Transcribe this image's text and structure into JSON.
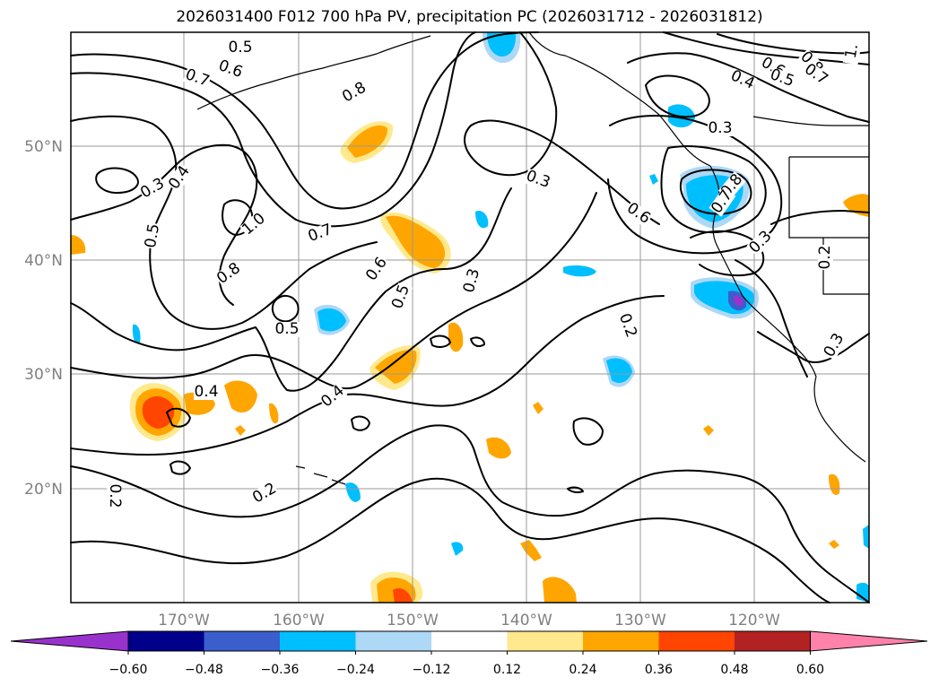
{
  "title": "2026031400 F012 700 hPa PV, precipitation PC (2026031712 - 2026031812)",
  "map": {
    "lon_labels": [
      "170°W",
      "160°W",
      "150°W",
      "140°W",
      "130°W",
      "120°W"
    ],
    "lat_labels": [
      "50°N",
      "40°N",
      "30°N",
      "20°N"
    ],
    "contour_labels": [
      "0.5",
      "0.6",
      "0.7",
      "0.8",
      "0.3",
      "0.4",
      "0.5",
      "1.0",
      "0.7",
      "0.8",
      "0.6",
      "0.5",
      "0.5",
      "0.3",
      "0.4",
      "0.4",
      "0.2",
      "0.2",
      "0.3",
      "0.6",
      "0.2",
      "0.3",
      "0.8",
      "0.7",
      "0.3",
      "0.6",
      "0.5",
      "0.8",
      "0.4",
      "0.7",
      "1.",
      "0.2",
      "0.3"
    ]
  },
  "colorbar": {
    "ticks": [
      "−0.60",
      "−0.48",
      "−0.36",
      "−0.24",
      "−0.12",
      "0.12",
      "0.24",
      "0.36",
      "0.48",
      "0.60"
    ],
    "colors": {
      "lt_m060": "#9932cc",
      "m060_m048": "#00008b",
      "m048_m036": "#3a5fcd",
      "m036_m024": "#00bfff",
      "m024_m012": "#add8f6",
      "m012_p012": "#ffffff",
      "p012_p024": "#ffe98c",
      "p024_p036": "#ffa500",
      "p036_p048": "#ff4500",
      "p048_p060": "#b22222",
      "gt_p060": "#ff82ab"
    }
  }
}
